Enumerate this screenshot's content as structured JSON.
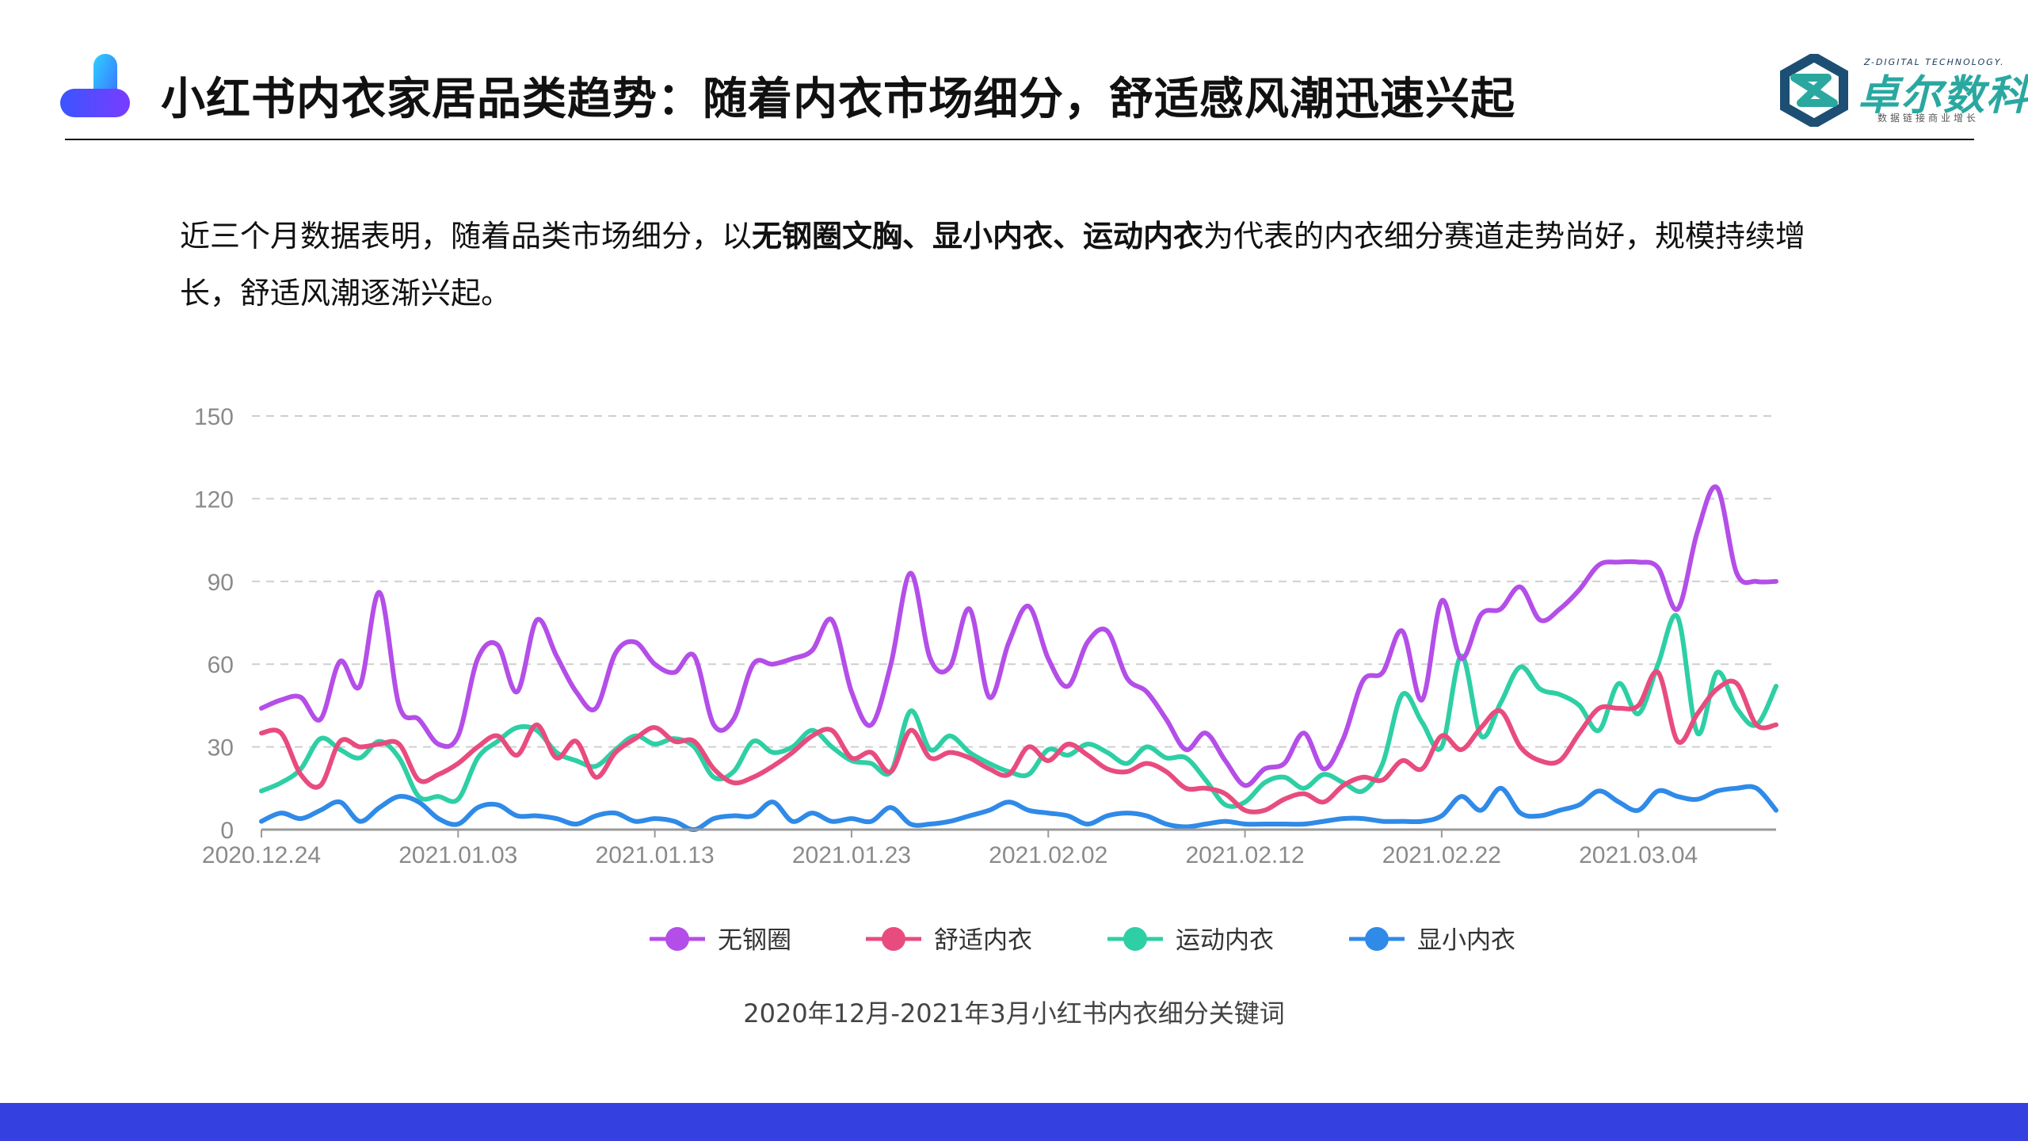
{
  "header": {
    "title": "小红书内衣家居品类趋势：随着内衣市场细分，舒适感风潮迅速兴起",
    "brand_name_cn": "卓尔数科",
    "brand_name_en": "Z-DIGITAL TECHNOLOGY.",
    "brand_slogan": "数据链接商业增长",
    "logo_icon": "stacked-pill-logo-icon",
    "brand_icon": "hexagon-z-logo-icon"
  },
  "intro": {
    "part1": "近三个月数据表明，随着品类市场细分，以",
    "bold": "无钢圈文胸、显小内衣、运动内衣",
    "part2": "为代表的内衣细分赛道走势尚好，规模持续增长，舒适风潮逐渐兴起。"
  },
  "colors": {
    "accent_bar": "#3440e0",
    "brand_teal": "#2aa8a0"
  },
  "chart_data": {
    "type": "line",
    "title": "",
    "caption": "2020年12月-2021年3月小红书内衣细分关键词",
    "xlabel": "",
    "ylabel": "",
    "ylim": [
      0,
      150
    ],
    "yticks": [
      0,
      30,
      60,
      90,
      120,
      150
    ],
    "grid": "horizontal-dashed",
    "legend": "bottom-center",
    "x_ticks": [
      "2020.12.24",
      "2021.01.03",
      "2021.01.13",
      "2021.01.23",
      "2021.02.02",
      "2021.02.12",
      "2021.02.22",
      "2021.03.04"
    ],
    "x": [
      "2020.12.24",
      "2020.12.25",
      "2020.12.26",
      "2020.12.27",
      "2020.12.28",
      "2020.12.29",
      "2020.12.30",
      "2020.12.31",
      "2021.01.01",
      "2021.01.02",
      "2021.01.03",
      "2021.01.04",
      "2021.01.05",
      "2021.01.06",
      "2021.01.07",
      "2021.01.08",
      "2021.01.09",
      "2021.01.10",
      "2021.01.11",
      "2021.01.12",
      "2021.01.13",
      "2021.01.14",
      "2021.01.15",
      "2021.01.16",
      "2021.01.17",
      "2021.01.18",
      "2021.01.19",
      "2021.01.20",
      "2021.01.21",
      "2021.01.22",
      "2021.01.23",
      "2021.01.24",
      "2021.01.25",
      "2021.01.26",
      "2021.01.27",
      "2021.01.28",
      "2021.01.29",
      "2021.01.30",
      "2021.01.31",
      "2021.02.01",
      "2021.02.02",
      "2021.02.03",
      "2021.02.04",
      "2021.02.05",
      "2021.02.06",
      "2021.02.07",
      "2021.02.08",
      "2021.02.09",
      "2021.02.10",
      "2021.02.11",
      "2021.02.12",
      "2021.02.13",
      "2021.02.14",
      "2021.02.15",
      "2021.02.16",
      "2021.02.17",
      "2021.02.18",
      "2021.02.19",
      "2021.02.20",
      "2021.02.21",
      "2021.02.22",
      "2021.02.23",
      "2021.02.24",
      "2021.02.25",
      "2021.02.26",
      "2021.02.27",
      "2021.02.28",
      "2021.03.01",
      "2021.03.02",
      "2021.03.03",
      "2021.03.04",
      "2021.03.05",
      "2021.03.06",
      "2021.03.07",
      "2021.03.08",
      "2021.03.09",
      "2021.03.10",
      "2021.03.11"
    ],
    "series": [
      {
        "name": "无钢圈",
        "color": "#b44ee8",
        "values": [
          44,
          47,
          48,
          40,
          61,
          52,
          86,
          45,
          40,
          31,
          34,
          62,
          67,
          50,
          76,
          63,
          50,
          44,
          64,
          68,
          60,
          57,
          63,
          38,
          40,
          60,
          60,
          62,
          65,
          76,
          50,
          38,
          60,
          93,
          62,
          59,
          80,
          48,
          68,
          81,
          62,
          52,
          68,
          72,
          55,
          50,
          40,
          29,
          35,
          25,
          16,
          22,
          24,
          35,
          22,
          33,
          54,
          57,
          72,
          47,
          83,
          62,
          78,
          80,
          88,
          76,
          80,
          87,
          96,
          97,
          97,
          95,
          80,
          108,
          124,
          93,
          90,
          90
        ],
        "label": ""
      },
      {
        "name": "舒适内衣",
        "color": "#e84c7e",
        "values": [
          35,
          35,
          20,
          16,
          32,
          30,
          31,
          31,
          18,
          20,
          24,
          30,
          34,
          27,
          38,
          26,
          32,
          19,
          28,
          33,
          37,
          32,
          32,
          22,
          17,
          19,
          23,
          28,
          34,
          36,
          26,
          28,
          21,
          36,
          26,
          28,
          26,
          22,
          20,
          30,
          25,
          31,
          27,
          22,
          21,
          24,
          21,
          15,
          15,
          13,
          7,
          7,
          11,
          13,
          10,
          16,
          19,
          18,
          25,
          22,
          34,
          29,
          37,
          43,
          30,
          25,
          25,
          35,
          44,
          44,
          45,
          57,
          32,
          42,
          51,
          53,
          38,
          38
        ],
        "label": ""
      },
      {
        "name": "运动内衣",
        "color": "#2ecfa5",
        "values": [
          14,
          17,
          22,
          33,
          29,
          26,
          32,
          26,
          12,
          12,
          11,
          26,
          32,
          37,
          36,
          28,
          25,
          23,
          29,
          34,
          31,
          33,
          30,
          19,
          21,
          32,
          28,
          30,
          36,
          30,
          25,
          24,
          21,
          43,
          29,
          34,
          28,
          24,
          21,
          20,
          29,
          27,
          31,
          28,
          24,
          30,
          26,
          26,
          18,
          9,
          10,
          17,
          19,
          15,
          20,
          17,
          14,
          24,
          49,
          39,
          30,
          63,
          34,
          46,
          59,
          51,
          49,
          45,
          36,
          53,
          42,
          60,
          77,
          35,
          57,
          44,
          38,
          52
        ]
      },
      {
        "name": "显小内衣",
        "color": "#2f8ae8",
        "values": [
          3,
          6,
          4,
          7,
          10,
          3,
          8,
          12,
          10,
          4,
          2,
          8,
          9,
          5,
          5,
          4,
          2,
          5,
          6,
          3,
          4,
          3,
          0,
          4,
          5,
          5,
          10,
          3,
          6,
          3,
          4,
          3,
          8,
          2,
          2,
          3,
          5,
          7,
          10,
          7,
          6,
          5,
          2,
          5,
          6,
          5,
          2,
          1,
          2,
          3,
          2,
          2,
          2,
          2,
          3,
          4,
          4,
          3,
          3,
          3,
          5,
          12,
          7,
          15,
          6,
          5,
          7,
          9,
          14,
          10,
          7,
          14,
          12,
          11,
          14,
          15,
          15,
          7
        ]
      }
    ]
  }
}
